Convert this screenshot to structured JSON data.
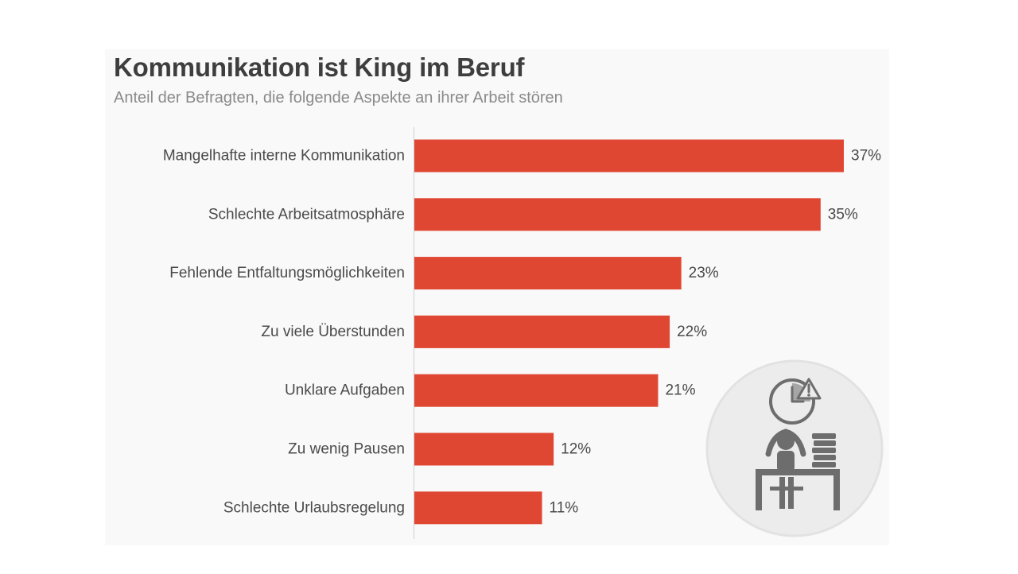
{
  "chart_data": {
    "type": "bar",
    "orientation": "horizontal",
    "title": "Kommunikation ist King im Beruf",
    "subtitle": "Anteil der Befragten, die folgende Aspekte an ihrer Arbeit stören",
    "categories": [
      "Mangelhafte interne Kommunikation",
      "Schlechte Arbeitsatmosphäre",
      "Fehlende Entfaltungsmöglichkeiten",
      "Zu viele Überstunden",
      "Unklare Aufgaben",
      "Zu wenig Pausen",
      "Schlechte Urlaubsregelung"
    ],
    "values": [
      37,
      35,
      23,
      22,
      21,
      12,
      11
    ],
    "value_labels": [
      "37%",
      "35%",
      "23%",
      "22%",
      "21%",
      "12%",
      "11%"
    ],
    "xlim": [
      0,
      40
    ],
    "grid": false,
    "bar_color": "#e04733",
    "illustration": "stressed-office-worker-icon"
  }
}
